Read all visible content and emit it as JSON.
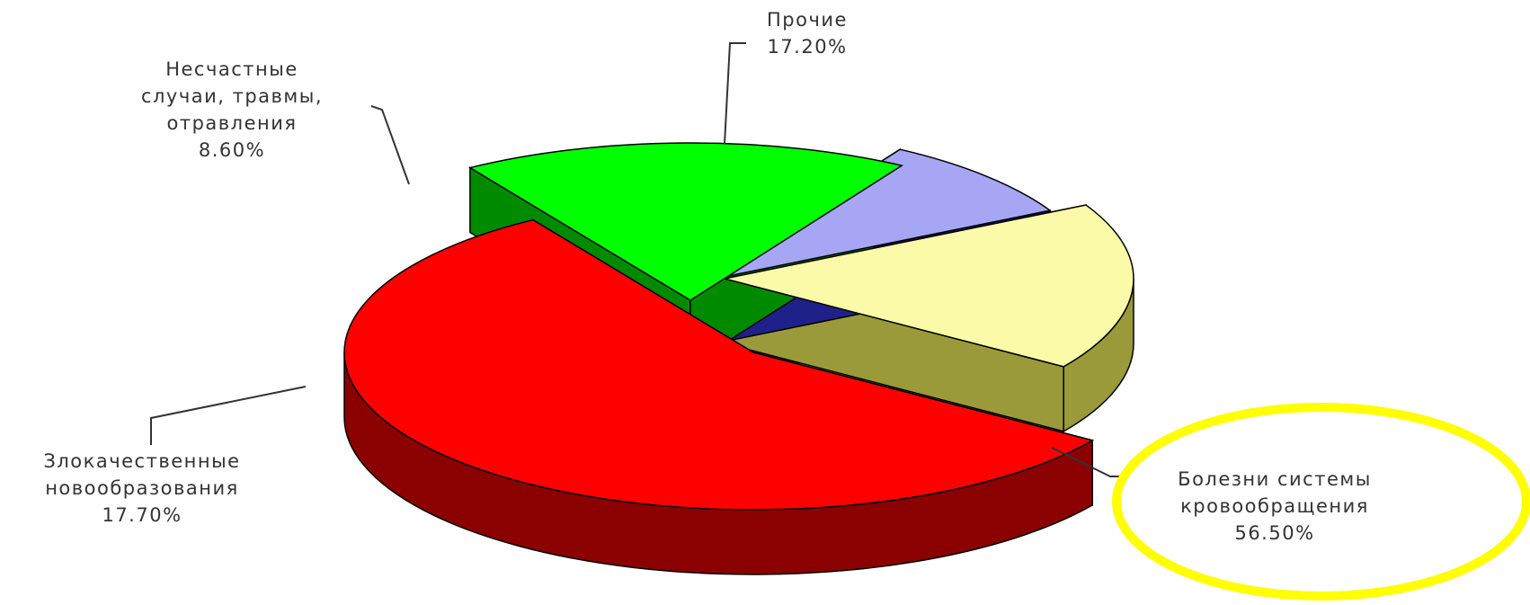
{
  "chart_data": {
    "type": "pie",
    "title": "",
    "three_d": true,
    "exploded": true,
    "slices": [
      {
        "id": "circulatory",
        "label_lines": [
          "Болезни системы",
          "кровообращения"
        ],
        "value_text": "56.50%",
        "value": 56.5,
        "color": "#ff0000",
        "side_color": "#8b0000"
      },
      {
        "id": "neoplasms",
        "label_lines": [
          "Злокачественные",
          "новообразования"
        ],
        "value_text": "17.70%",
        "value": 17.7,
        "color": "#00ff00",
        "side_color": "#008a00"
      },
      {
        "id": "accidents",
        "label_lines": [
          "Несчастные",
          "случаи, травмы,",
          "отравления"
        ],
        "value_text": "8.60%",
        "value": 8.6,
        "color": "#a6a6f5",
        "side_color": "#20208a"
      },
      {
        "id": "other",
        "label_lines": [
          "Прочие"
        ],
        "value_text": "17.20%",
        "value": 17.2,
        "color": "#fafaa8",
        "side_color": "#9a9a3a"
      }
    ],
    "highlight": {
      "slice": "circulatory",
      "shape": "ellipse",
      "color": "#ffff00"
    },
    "legend": "none"
  }
}
